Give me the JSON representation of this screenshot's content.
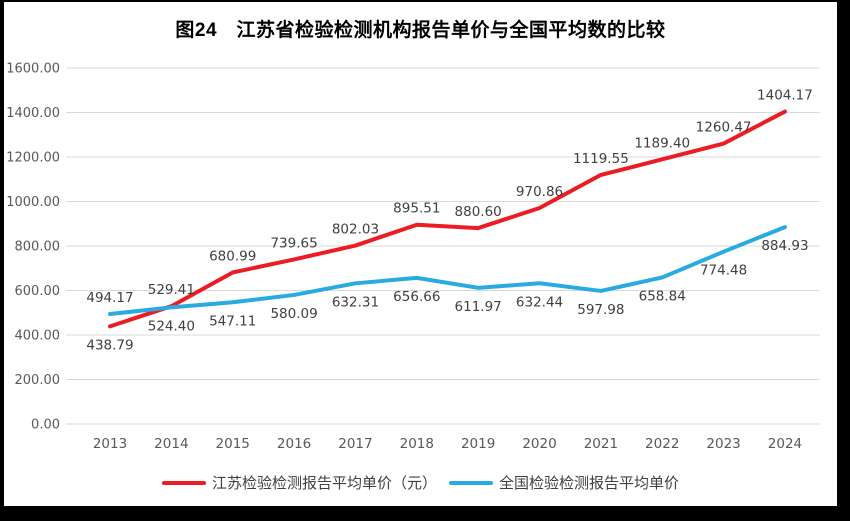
{
  "title": "图24　江苏省检验检测机构报告单价与全国平均数的比较",
  "colors": {
    "frame": "#000000",
    "canvas": "#ffffff",
    "grid": "#d9d9d9",
    "axis_text": "#595959",
    "data_label_text": "#404040",
    "title_text": "#000000",
    "series_jiangsu": "#ec1c24",
    "series_national": "#29abe2"
  },
  "chart_data": {
    "type": "line",
    "title": "图24　江苏省检验检测机构报告单价与全国平均数的比较",
    "categories": [
      "2013",
      "2014",
      "2015",
      "2016",
      "2017",
      "2018",
      "2019",
      "2020",
      "2021",
      "2022",
      "2023",
      "2024"
    ],
    "series": [
      {
        "name": "江苏检验检测报告平均单价（元）",
        "color": "#ec1c24",
        "values": [
          438.79,
          529.41,
          680.99,
          739.65,
          802.03,
          895.51,
          880.6,
          970.86,
          1119.55,
          1189.4,
          1260.47,
          1404.17
        ],
        "labels": [
          "438.79",
          "529.41",
          "680.99",
          "739.65",
          "802.03",
          "895.51",
          "880.60",
          "970.86",
          "1119.55",
          "1189.40",
          "1260.47",
          "1404.17"
        ],
        "label_side": [
          "below",
          "above",
          "above",
          "above",
          "above",
          "above",
          "above",
          "above",
          "above",
          "above",
          "above",
          "above"
        ]
      },
      {
        "name": "全国检验检测报告平均单价",
        "color": "#29abe2",
        "values": [
          494.17,
          524.4,
          547.11,
          580.09,
          632.31,
          656.66,
          611.97,
          632.44,
          597.98,
          658.84,
          774.48,
          884.93
        ],
        "labels": [
          "494.17",
          "524.40",
          "547.11",
          "580.09",
          "632.31",
          "656.66",
          "611.97",
          "632.44",
          "597.98",
          "658.84",
          "774.48",
          "884.93"
        ],
        "label_side": [
          "above",
          "below",
          "below",
          "below",
          "below",
          "below",
          "below",
          "below",
          "below",
          "below",
          "below",
          "below"
        ]
      }
    ],
    "ylim": [
      0,
      1600
    ],
    "ytick_step": 200,
    "ytick_labels": [
      "0.00",
      "200.00",
      "400.00",
      "600.00",
      "800.00",
      "1000.00",
      "1200.00",
      "1400.00",
      "1600.00"
    ],
    "grid": true,
    "legend_position": "bottom"
  }
}
